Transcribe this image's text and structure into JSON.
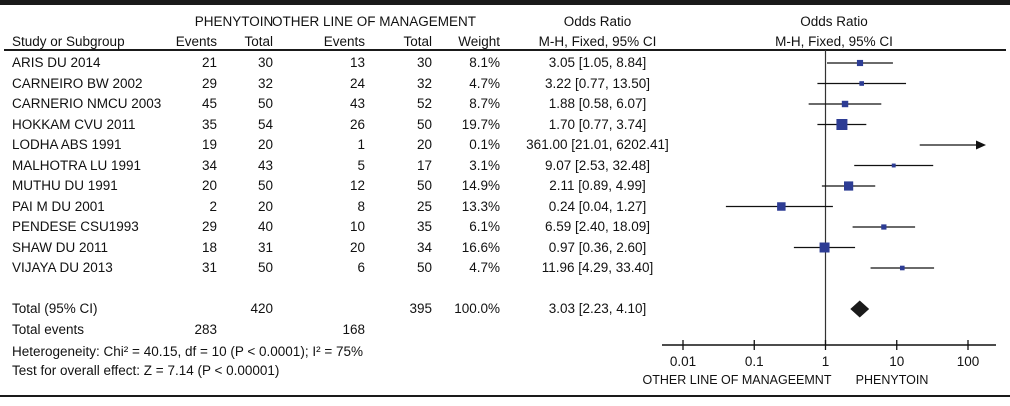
{
  "header": {
    "group1": "PHENYTOIN",
    "group2": "OTHER LINE OF MANAGEMENT",
    "study_col": "Study or Subgroup",
    "events_col1": "Events",
    "total_col1": "Total",
    "events_col2": "Events",
    "total_col2": "Total",
    "weight_col": "Weight",
    "or_title": "Odds Ratio",
    "or_subtitle": "M-H, Fixed, 95% CI",
    "plot_title": "Odds Ratio",
    "plot_subtitle": "M-H, Fixed, 95% CI"
  },
  "totals": {
    "label": "Total (95% CI)",
    "total1": "420",
    "total2": "395",
    "weight": "100.0%",
    "or_text": "3.03 [2.23, 4.10]",
    "events_label": "Total events",
    "events1": "283",
    "events2": "168"
  },
  "footnotes": {
    "heterogeneity": "Heterogeneity: Chi² = 40.15, df = 10 (P < 0.0001); I² = 75%",
    "overall_effect": "Test for overall effect: Z = 7.14 (P < 0.00001)"
  },
  "chart_data": {
    "type": "forest",
    "x_scale": "log10",
    "axis_ticks": [
      "0.01",
      "0.1",
      "1",
      "10",
      "100"
    ],
    "axis_range": [
      0.01,
      100
    ],
    "axis_label_left": "OTHER LINE OF MANAGEEMNT",
    "axis_label_right": "PHENYTOIN",
    "marker_color": "#2d3c94",
    "diamond_color": "#1a1a1a",
    "pooled": {
      "or": 3.03,
      "ci_low": 2.23,
      "ci_high": 4.1,
      "or_text": "3.03 [2.23, 4.10]"
    },
    "studies": [
      {
        "name": "ARIS DU 2014",
        "events1": "21",
        "total1": "30",
        "events2": "13",
        "total2": "30",
        "weight": "8.1%",
        "w": 8.1,
        "or": 3.05,
        "lo": 1.05,
        "hi": 8.84,
        "or_text": "3.05 [1.05, 8.84]"
      },
      {
        "name": "CARNEIRO BW 2002",
        "events1": "29",
        "total1": "32",
        "events2": "24",
        "total2": "32",
        "weight": "4.7%",
        "w": 4.7,
        "or": 3.22,
        "lo": 0.77,
        "hi": 13.5,
        "or_text": "3.22 [0.77, 13.50]"
      },
      {
        "name": "CARNERIO NMCU 2003",
        "events1": "45",
        "total1": "50",
        "events2": "43",
        "total2": "52",
        "weight": "8.7%",
        "w": 8.7,
        "or": 1.88,
        "lo": 0.58,
        "hi": 6.07,
        "or_text": "1.88 [0.58, 6.07]"
      },
      {
        "name": "HOKKAM CVU 2011",
        "events1": "35",
        "total1": "54",
        "events2": "26",
        "total2": "50",
        "weight": "19.7%",
        "w": 19.7,
        "or": 1.7,
        "lo": 0.77,
        "hi": 3.74,
        "or_text": "1.70 [0.77, 3.74]"
      },
      {
        "name": "LODHA ABS 1991",
        "events1": "19",
        "total1": "20",
        "events2": "1",
        "total2": "20",
        "weight": "0.1%",
        "w": 0.1,
        "or": 361.0,
        "lo": 21.01,
        "hi": 6202.41,
        "or_text": "361.00 [21.01, 6202.41]"
      },
      {
        "name": "MALHOTRA LU 1991",
        "events1": "34",
        "total1": "43",
        "events2": "5",
        "total2": "17",
        "weight": "3.1%",
        "w": 3.1,
        "or": 9.07,
        "lo": 2.53,
        "hi": 32.48,
        "or_text": "9.07 [2.53, 32.48]"
      },
      {
        "name": "MUTHU DU 1991",
        "events1": "20",
        "total1": "50",
        "events2": "12",
        "total2": "50",
        "weight": "14.9%",
        "w": 14.9,
        "or": 2.11,
        "lo": 0.89,
        "hi": 4.99,
        "or_text": "2.11 [0.89, 4.99]"
      },
      {
        "name": "PAI M DU 2001",
        "events1": "2",
        "total1": "20",
        "events2": "8",
        "total2": "25",
        "weight": "13.3%",
        "w": 13.3,
        "or": 0.24,
        "lo": 0.04,
        "hi": 1.27,
        "or_text": "0.24 [0.04, 1.27]"
      },
      {
        "name": "PENDESE CSU1993",
        "events1": "29",
        "total1": "40",
        "events2": "10",
        "total2": "35",
        "weight": "6.1%",
        "w": 6.1,
        "or": 6.59,
        "lo": 2.4,
        "hi": 18.09,
        "or_text": "6.59 [2.40, 18.09]"
      },
      {
        "name": "SHAW DU 2011",
        "events1": "18",
        "total1": "31",
        "events2": "20",
        "total2": "34",
        "weight": "16.6%",
        "w": 16.6,
        "or": 0.97,
        "lo": 0.36,
        "hi": 2.6,
        "or_text": "0.97 [0.36, 2.60]"
      },
      {
        "name": "VIJAYA DU 2013",
        "events1": "31",
        "total1": "50",
        "events2": "6",
        "total2": "50",
        "weight": "4.7%",
        "w": 4.7,
        "or": 11.96,
        "lo": 4.29,
        "hi": 33.4,
        "or_text": "11.96 [4.29, 33.40]"
      }
    ]
  }
}
